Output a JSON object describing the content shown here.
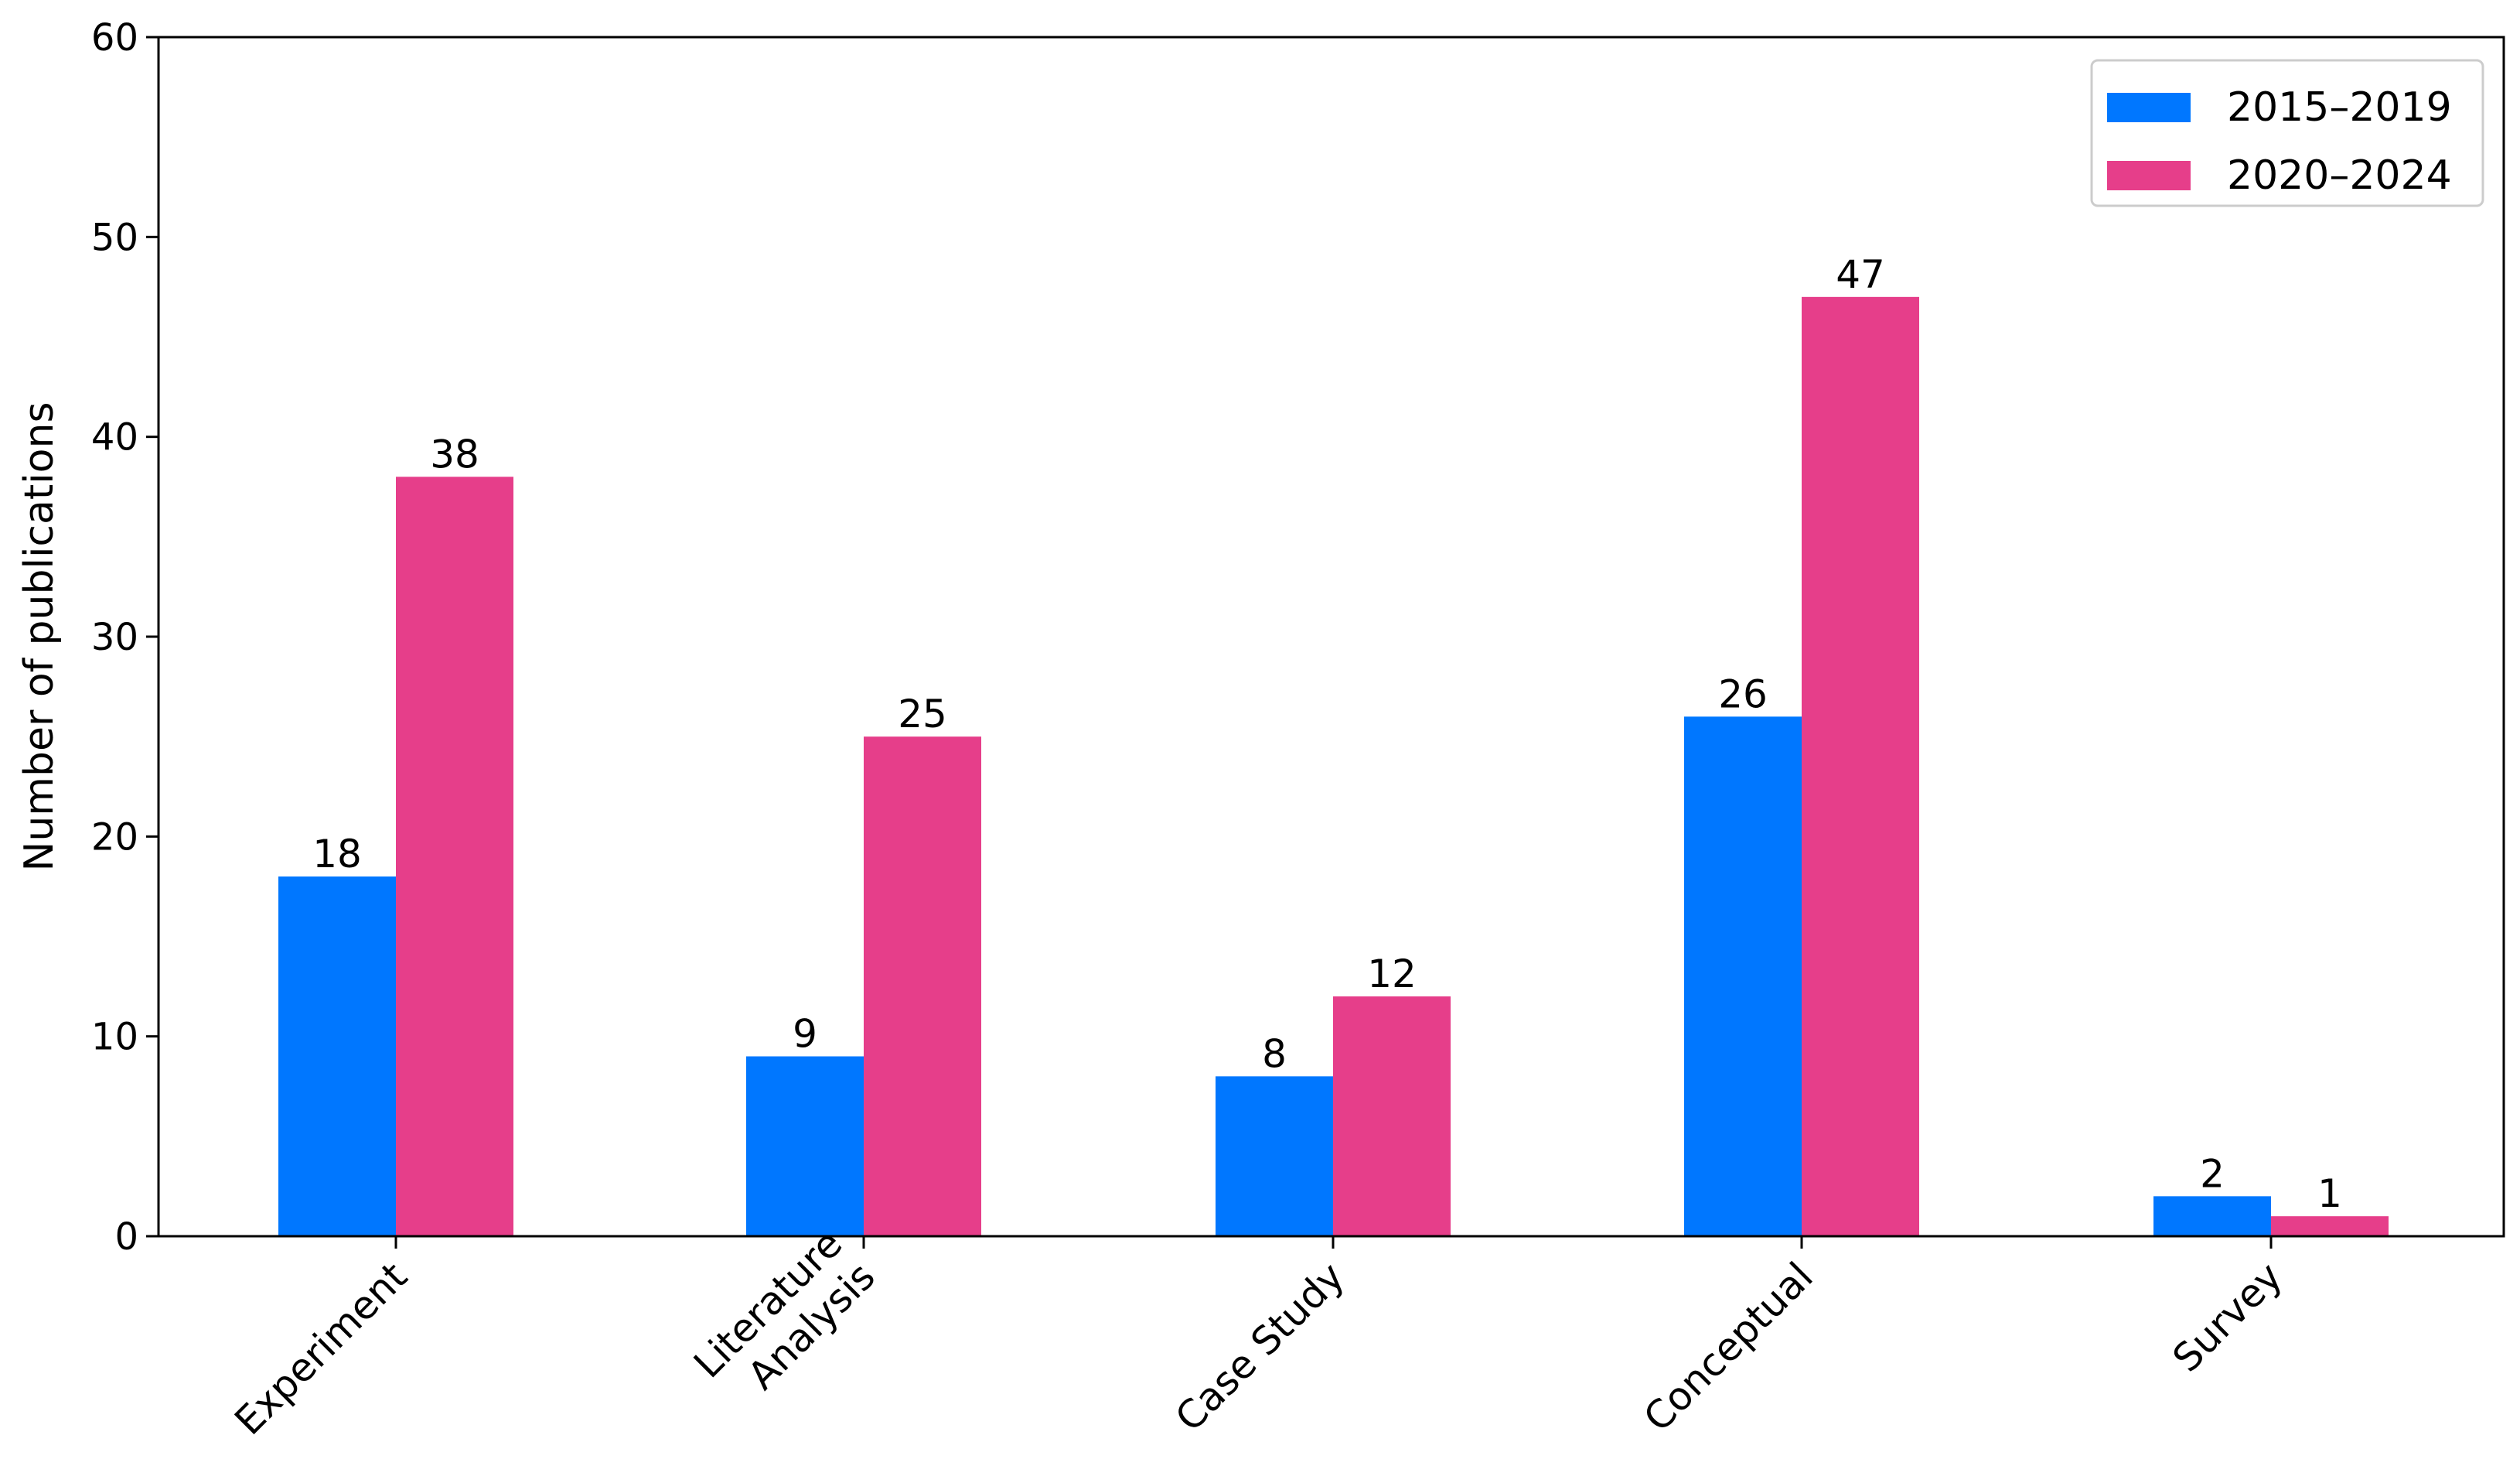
{
  "chart_data": {
    "type": "bar",
    "title": "",
    "xlabel": "",
    "ylabel": "Number of publications",
    "ylim": [
      0,
      60
    ],
    "yticks": [
      0,
      10,
      20,
      30,
      40,
      50,
      60
    ],
    "categories": [
      [
        "Experiment"
      ],
      [
        "Literature",
        "Analysis"
      ],
      [
        "Case Study"
      ],
      [
        "Conceptual"
      ],
      [
        "Survey"
      ]
    ],
    "series": [
      {
        "name": "2015–2019",
        "color": "#0077FF",
        "values": [
          18,
          9,
          8,
          26,
          2
        ]
      },
      {
        "name": "2020–2024",
        "color": "#E63E8A",
        "values": [
          38,
          25,
          12,
          47,
          1
        ]
      }
    ],
    "grid": false,
    "legend_position": "top-right",
    "data_labels": true
  }
}
